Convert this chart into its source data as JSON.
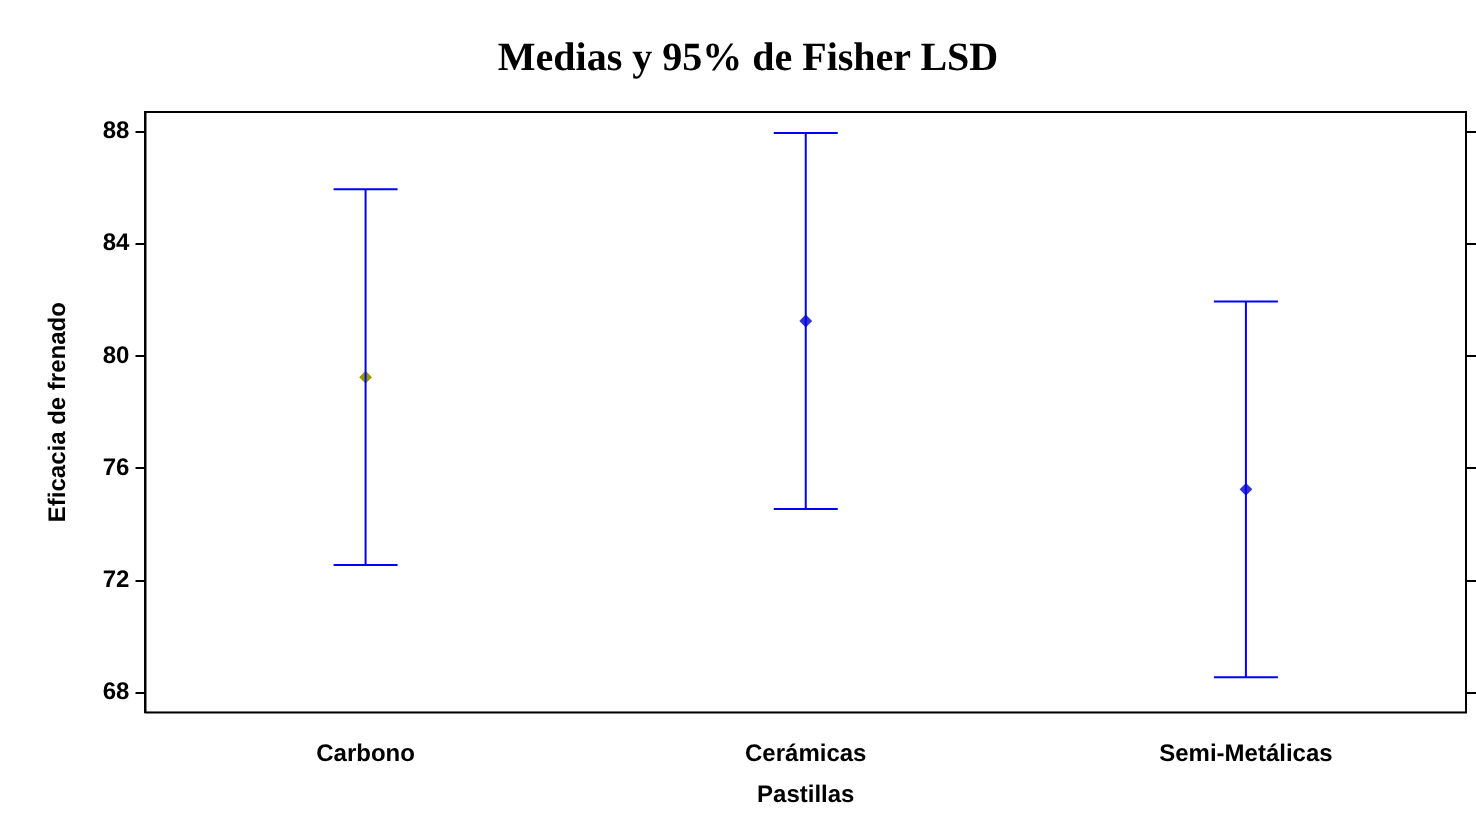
{
  "chart_data": {
    "type": "scatter",
    "title": "Medias y 95% de Fisher LSD",
    "xlabel": "Pastillas",
    "ylabel": "Eficacia de frenado",
    "categories": [
      "Carbono",
      "Cerámicas",
      "Semi-Metálicas"
    ],
    "series": [
      {
        "color": "#0000ff",
        "colors": [
          "#999900",
          "#3333cc",
          "#3333cc"
        ],
        "values": [
          79.25,
          81.25,
          75.25
        ],
        "errors": [
          [
            72.55,
            85.95
          ],
          [
            74.55,
            87.95
          ],
          [
            68.55,
            81.95
          ]
        ]
      }
    ],
    "ylim": [
      67.3,
      88.7
    ],
    "yticks": [
      68,
      72,
      76,
      80,
      84,
      88
    ],
    "grid": false,
    "legend": false,
    "marker": "diamond"
  }
}
